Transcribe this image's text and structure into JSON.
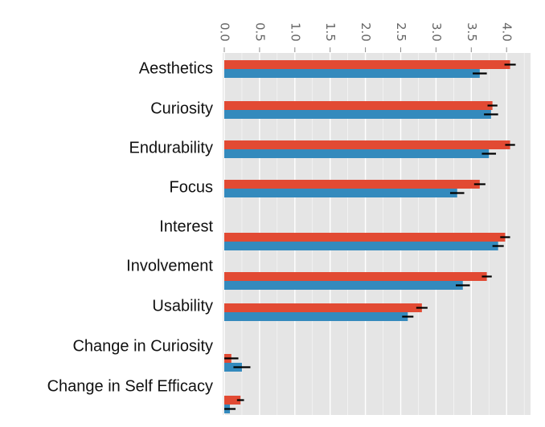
{
  "chart_data": {
    "type": "bar",
    "orientation": "horizontal",
    "categories": [
      "Aesthetics",
      "Curiosity",
      "Endurability",
      "Focus",
      "Interest",
      "Involvement",
      "Usability",
      "Change in Curiosity",
      "Change in Self Efficacy"
    ],
    "series": [
      {
        "color": "#E24A33",
        "values": [
          4.05,
          3.8,
          4.05,
          3.62,
          3.98,
          3.72,
          2.8,
          0.1,
          0.23
        ],
        "errors": [
          0.08,
          0.07,
          0.07,
          0.08,
          0.07,
          0.07,
          0.08,
          0.1,
          0.05
        ]
      },
      {
        "color": "#348ABD",
        "values": [
          3.62,
          3.78,
          3.75,
          3.3,
          3.88,
          3.38,
          2.6,
          0.25,
          0.08
        ],
        "errors": [
          0.1,
          0.1,
          0.1,
          0.1,
          0.08,
          0.1,
          0.08,
          0.12,
          0.08
        ]
      }
    ],
    "xlim": [
      0,
      4.3
    ],
    "xticks": [
      "0.0",
      "0.5",
      "1.0",
      "1.5",
      "2.0",
      "2.5",
      "3.0",
      "3.5",
      "4.0"
    ],
    "xaxis_position": "top",
    "tick_label_rotation": "vertical",
    "grid": true,
    "background": "#E5E5E5",
    "legend": "none",
    "title": "",
    "xlabel": "",
    "ylabel": ""
  }
}
